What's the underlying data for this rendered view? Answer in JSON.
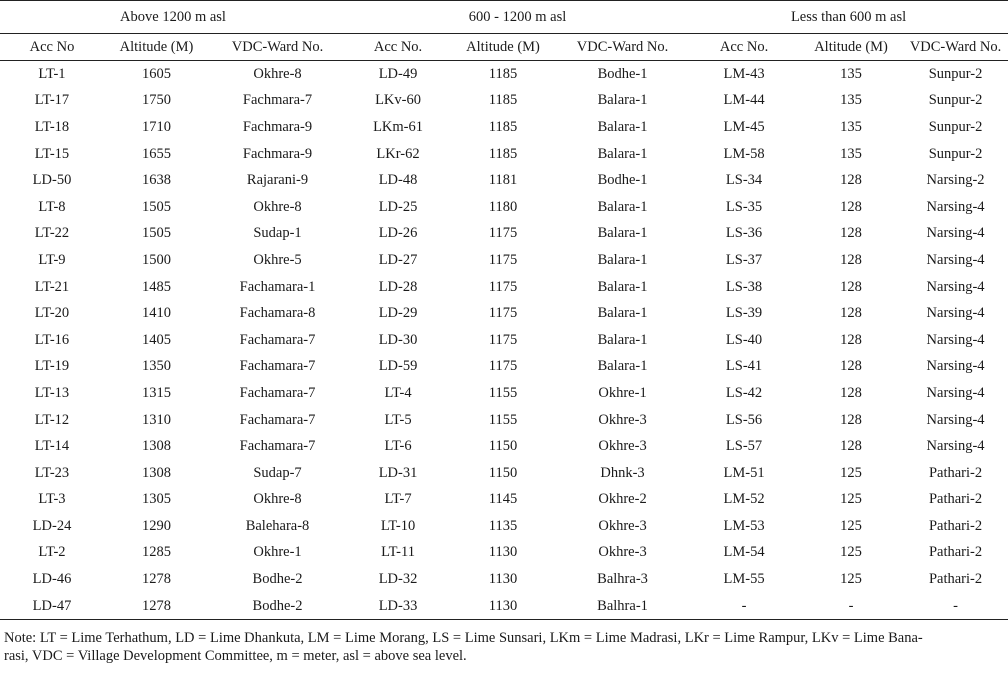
{
  "groups": [
    "Above 1200 m asl",
    "600 - 1200 m asl",
    "Less than 600 m asl"
  ],
  "columns": [
    "Acc No",
    "Altitude (M)",
    "VDC-Ward No.",
    "Acc No.",
    "Altitude (M)",
    "VDC-Ward No.",
    "Acc No.",
    "Altitude (M)",
    "VDC-Ward No."
  ],
  "rows": [
    [
      "LT-1",
      "1605",
      "Okhre-8",
      "LD-49",
      "1185",
      "Bodhe-1",
      "LM-43",
      "135",
      "Sunpur-2"
    ],
    [
      "LT-17",
      "1750",
      "Fachmara-7",
      "LKv-60",
      "1185",
      "Balara-1",
      "LM-44",
      "135",
      "Sunpur-2"
    ],
    [
      "LT-18",
      "1710",
      "Fachmara-9",
      "LKm-61",
      "1185",
      "Balara-1",
      "LM-45",
      "135",
      "Sunpur-2"
    ],
    [
      "LT-15",
      "1655",
      "Fachmara-9",
      "LKr-62",
      "1185",
      "Balara-1",
      "LM-58",
      "135",
      "Sunpur-2"
    ],
    [
      "LD-50",
      "1638",
      "Rajarani-9",
      "LD-48",
      "1181",
      "Bodhe-1",
      "LS-34",
      "128",
      "Narsing-2"
    ],
    [
      "LT-8",
      "1505",
      "Okhre-8",
      "LD-25",
      "1180",
      "Balara-1",
      "LS-35",
      "128",
      "Narsing-4"
    ],
    [
      "LT-22",
      "1505",
      "Sudap-1",
      "LD-26",
      "1175",
      "Balara-1",
      "LS-36",
      "128",
      "Narsing-4"
    ],
    [
      "LT-9",
      "1500",
      "Okhre-5",
      "LD-27",
      "1175",
      "Balara-1",
      "LS-37",
      "128",
      "Narsing-4"
    ],
    [
      "LT-21",
      "1485",
      "Fachamara-1",
      "LD-28",
      "1175",
      "Balara-1",
      "LS-38",
      "128",
      "Narsing-4"
    ],
    [
      "LT-20",
      "1410",
      "Fachamara-8",
      "LD-29",
      "1175",
      "Balara-1",
      "LS-39",
      "128",
      "Narsing-4"
    ],
    [
      "LT-16",
      "1405",
      "Fachamara-7",
      "LD-30",
      "1175",
      "Balara-1",
      "LS-40",
      "128",
      "Narsing-4"
    ],
    [
      "LT-19",
      "1350",
      "Fachamara-7",
      "LD-59",
      "1175",
      "Balara-1",
      "LS-41",
      "128",
      "Narsing-4"
    ],
    [
      "LT-13",
      "1315",
      "Fachamara-7",
      "LT-4",
      "1155",
      "Okhre-1",
      "LS-42",
      "128",
      "Narsing-4"
    ],
    [
      "LT-12",
      "1310",
      "Fachamara-7",
      "LT-5",
      "1155",
      "Okhre-3",
      "LS-56",
      "128",
      "Narsing-4"
    ],
    [
      "LT-14",
      "1308",
      "Fachamara-7",
      "LT-6",
      "1150",
      "Okhre-3",
      "LS-57",
      "128",
      "Narsing-4"
    ],
    [
      "LT-23",
      "1308",
      "Sudap-7",
      "LD-31",
      "1150",
      "Dhnk-3",
      "LM-51",
      "125",
      "Pathari-2"
    ],
    [
      "LT-3",
      "1305",
      "Okhre-8",
      "LT-7",
      "1145",
      "Okhre-2",
      "LM-52",
      "125",
      "Pathari-2"
    ],
    [
      "LD-24",
      "1290",
      "Balehara-8",
      "LT-10",
      "1135",
      "Okhre-3",
      "LM-53",
      "125",
      "Pathari-2"
    ],
    [
      "LT-2",
      "1285",
      "Okhre-1",
      "LT-11",
      "1130",
      "Okhre-3",
      "LM-54",
      "125",
      "Pathari-2"
    ],
    [
      "LD-46",
      "1278",
      "Bodhe-2",
      "LD-32",
      "1130",
      "Balhra-3",
      "LM-55",
      "125",
      "Pathari-2"
    ],
    [
      "LD-47",
      "1278",
      "Bodhe-2",
      "LD-33",
      "1130",
      "Balhra-1",
      "-",
      "-",
      "-"
    ]
  ],
  "note_line1": "Note: LT = Lime Terhathum, LD = Lime Dhankuta, LM = Lime Morang, LS = Lime Sunsari, LKm = Lime Madrasi, LKr = Lime Rampur, LKv = Lime Bana-",
  "note_line2": "rasi, VDC = Village Development Committee, m = meter, asl = above sea level."
}
